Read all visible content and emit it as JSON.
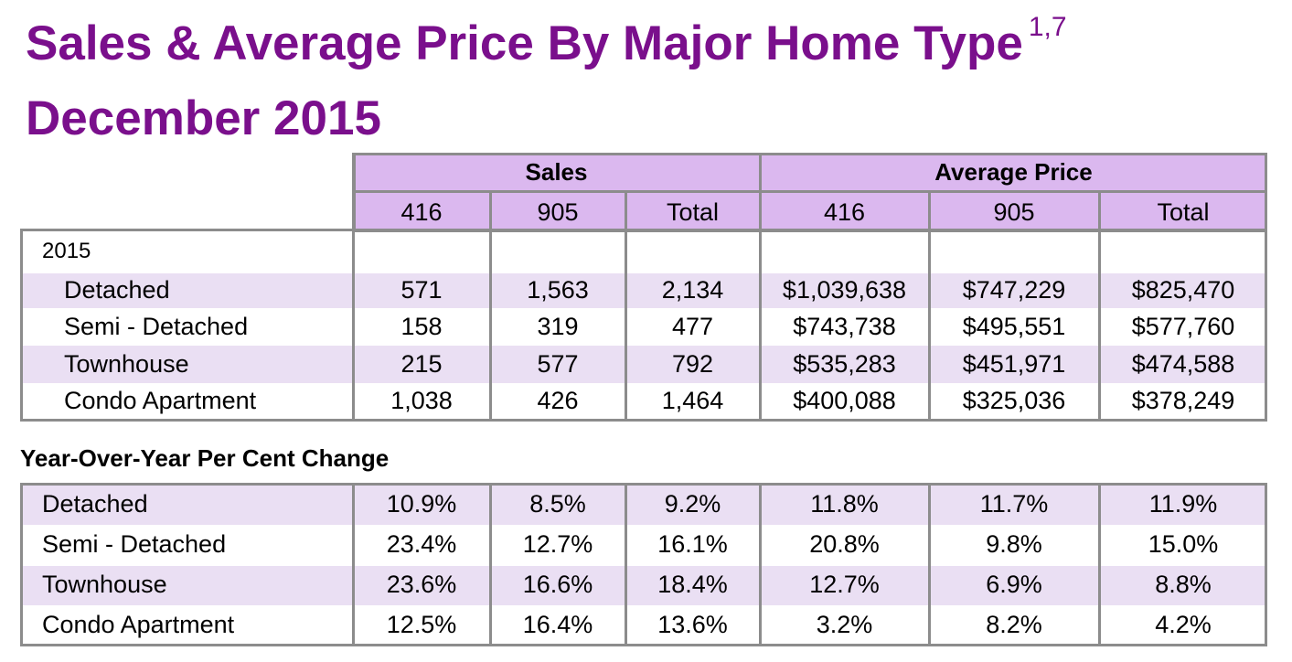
{
  "title": {
    "line1": "Sales & Average Price By Major Home Type",
    "superscript": "1,7",
    "line2": "December 2015"
  },
  "table1": {
    "group_headers": [
      "Sales",
      "Average Price"
    ],
    "sub_headers": [
      "416",
      "905",
      "Total",
      "416",
      "905",
      "Total"
    ],
    "year_label": "2015",
    "rows": [
      {
        "label": "Detached",
        "values": [
          "571",
          "1,563",
          "2,134",
          "$1,039,638",
          "$747,229",
          "$825,470"
        ]
      },
      {
        "label": "Semi - Detached",
        "values": [
          "158",
          "319",
          "477",
          "$743,738",
          "$495,551",
          "$577,760"
        ]
      },
      {
        "label": "Townhouse",
        "values": [
          "215",
          "577",
          "792",
          "$535,283",
          "$451,971",
          "$474,588"
        ]
      },
      {
        "label": "Condo Apartment",
        "values": [
          "1,038",
          "426",
          "1,464",
          "$400,088",
          "$325,036",
          "$378,249"
        ]
      }
    ]
  },
  "table2": {
    "heading": "Year-Over-Year Per Cent Change",
    "rows": [
      {
        "label": "Detached",
        "values": [
          "10.9%",
          "8.5%",
          "9.2%",
          "11.8%",
          "11.7%",
          "11.9%"
        ]
      },
      {
        "label": "Semi - Detached",
        "values": [
          "23.4%",
          "12.7%",
          "16.1%",
          "20.8%",
          "9.8%",
          "15.0%"
        ]
      },
      {
        "label": "Townhouse",
        "values": [
          "23.6%",
          "16.6%",
          "18.4%",
          "12.7%",
          "6.9%",
          "8.8%"
        ]
      },
      {
        "label": "Condo Apartment",
        "values": [
          "12.5%",
          "16.4%",
          "13.6%",
          "3.2%",
          "8.2%",
          "4.2%"
        ]
      }
    ]
  },
  "colors": {
    "title": "#7a0f8c",
    "header_fill": "#dbb8ef",
    "band_fill": "#eadff3",
    "grid": "#8c8c8c"
  }
}
